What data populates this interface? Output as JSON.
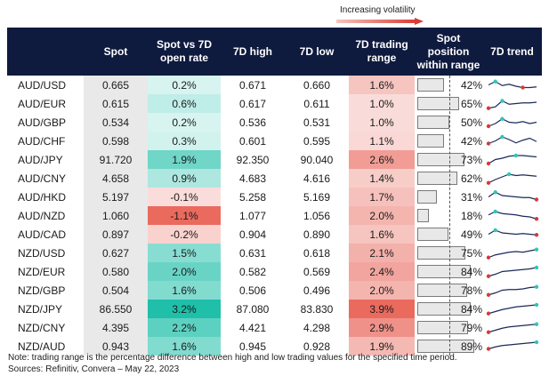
{
  "header": {
    "volatility_label": "Increasing volatility",
    "columns": [
      "",
      "Spot",
      "Spot vs 7D open rate",
      "7D high",
      "7D low",
      "7D trading range",
      "Spot position within range",
      "7D trend"
    ]
  },
  "chart_data": {
    "type": "table",
    "rows": [
      {
        "pair": "AUD/USD",
        "spot": "0.665",
        "vs_open": "0.2%",
        "vs_open_v": 0.2,
        "high": "0.671",
        "low": "0.660",
        "range": "1.6%",
        "range_v": 1.6,
        "pos": "42%",
        "pos_v": 42,
        "trend": [
          0.5,
          0.75,
          0.45,
          0.55,
          0.4,
          0.3,
          0.3,
          0.35
        ]
      },
      {
        "pair": "AUD/EUR",
        "spot": "0.615",
        "vs_open": "0.6%",
        "vs_open_v": 0.6,
        "high": "0.617",
        "low": "0.611",
        "range": "1.0%",
        "range_v": 1.0,
        "pos": "65%",
        "pos_v": 65,
        "trend": [
          0.15,
          0.25,
          0.7,
          0.45,
          0.5,
          0.55,
          0.55,
          0.6
        ]
      },
      {
        "pair": "AUD/GBP",
        "spot": "0.534",
        "vs_open": "0.2%",
        "vs_open_v": 0.2,
        "high": "0.536",
        "low": "0.531",
        "range": "1.0%",
        "range_v": 1.0,
        "pos": "50%",
        "pos_v": 50,
        "trend": [
          0.2,
          0.4,
          0.75,
          0.5,
          0.45,
          0.55,
          0.4,
          0.5
        ]
      },
      {
        "pair": "AUD/CHF",
        "spot": "0.598",
        "vs_open": "0.3%",
        "vs_open_v": 0.3,
        "high": "0.601",
        "low": "0.595",
        "range": "1.1%",
        "range_v": 1.1,
        "pos": "42%",
        "pos_v": 42,
        "trend": [
          0.3,
          0.5,
          0.8,
          0.6,
          0.35,
          0.55,
          0.7,
          0.45
        ]
      },
      {
        "pair": "AUD/JPY",
        "spot": "91.720",
        "vs_open": "1.9%",
        "vs_open_v": 1.9,
        "high": "92.350",
        "low": "90.040",
        "range": "2.6%",
        "range_v": 2.6,
        "pos": "73%",
        "pos_v": 73,
        "trend": [
          0.2,
          0.5,
          0.6,
          0.75,
          0.8,
          0.8,
          0.75,
          0.7
        ]
      },
      {
        "pair": "AUD/CNY",
        "spot": "4.658",
        "vs_open": "0.9%",
        "vs_open_v": 0.9,
        "high": "4.683",
        "low": "4.616",
        "range": "1.4%",
        "range_v": 1.4,
        "pos": "62%",
        "pos_v": 62,
        "trend": [
          0.15,
          0.4,
          0.6,
          0.8,
          0.7,
          0.75,
          0.7,
          0.65
        ]
      },
      {
        "pair": "AUD/HKD",
        "spot": "5.197",
        "vs_open": "-0.1%",
        "vs_open_v": -0.1,
        "high": "5.258",
        "low": "5.169",
        "range": "1.7%",
        "range_v": 1.7,
        "pos": "31%",
        "pos_v": 31,
        "trend": [
          0.5,
          0.85,
          0.6,
          0.55,
          0.5,
          0.45,
          0.45,
          0.3
        ]
      },
      {
        "pair": "AUD/NZD",
        "spot": "1.060",
        "vs_open": "-1.1%",
        "vs_open_v": -1.1,
        "high": "1.077",
        "low": "1.056",
        "range": "2.0%",
        "range_v": 2.0,
        "pos": "18%",
        "pos_v": 18,
        "trend": [
          0.55,
          0.8,
          0.65,
          0.6,
          0.55,
          0.45,
          0.4,
          0.25
        ]
      },
      {
        "pair": "AUD/CAD",
        "spot": "0.897",
        "vs_open": "-0.2%",
        "vs_open_v": -0.2,
        "high": "0.904",
        "low": "0.890",
        "range": "1.6%",
        "range_v": 1.6,
        "pos": "49%",
        "pos_v": 49,
        "trend": [
          0.5,
          0.8,
          0.6,
          0.55,
          0.5,
          0.55,
          0.5,
          0.45
        ]
      },
      {
        "pair": "NZD/USD",
        "spot": "0.627",
        "vs_open": "1.5%",
        "vs_open_v": 1.5,
        "high": "0.631",
        "low": "0.618",
        "range": "2.1%",
        "range_v": 2.1,
        "pos": "75%",
        "pos_v": 75,
        "trend": [
          0.15,
          0.35,
          0.45,
          0.55,
          0.6,
          0.55,
          0.65,
          0.75
        ]
      },
      {
        "pair": "NZD/EUR",
        "spot": "0.580",
        "vs_open": "2.0%",
        "vs_open_v": 2.0,
        "high": "0.582",
        "low": "0.569",
        "range": "2.4%",
        "range_v": 2.4,
        "pos": "84%",
        "pos_v": 84,
        "trend": [
          0.15,
          0.3,
          0.5,
          0.55,
          0.6,
          0.65,
          0.7,
          0.8
        ]
      },
      {
        "pair": "NZD/GBP",
        "spot": "0.504",
        "vs_open": "1.6%",
        "vs_open_v": 1.6,
        "high": "0.506",
        "low": "0.496",
        "range": "2.0%",
        "range_v": 2.0,
        "pos": "78%",
        "pos_v": 78,
        "trend": [
          0.15,
          0.3,
          0.5,
          0.55,
          0.55,
          0.6,
          0.7,
          0.75
        ]
      },
      {
        "pair": "NZD/JPY",
        "spot": "86.550",
        "vs_open": "3.2%",
        "vs_open_v": 3.2,
        "high": "87.080",
        "low": "83.830",
        "range": "3.9%",
        "range_v": 3.9,
        "pos": "84%",
        "pos_v": 84,
        "trend": [
          0.15,
          0.3,
          0.45,
          0.55,
          0.65,
          0.7,
          0.75,
          0.8
        ]
      },
      {
        "pair": "NZD/CNY",
        "spot": "4.395",
        "vs_open": "2.2%",
        "vs_open_v": 2.2,
        "high": "4.421",
        "low": "4.298",
        "range": "2.9%",
        "range_v": 2.9,
        "pos": "79%",
        "pos_v": 79,
        "trend": [
          0.15,
          0.3,
          0.45,
          0.55,
          0.6,
          0.65,
          0.7,
          0.75
        ]
      },
      {
        "pair": "NZD/AUD",
        "spot": "0.943",
        "vs_open": "1.6%",
        "vs_open_v": 1.6,
        "high": "0.945",
        "low": "0.928",
        "range": "1.9%",
        "range_v": 1.9,
        "pos": "89%",
        "pos_v": 89,
        "trend": [
          0.3,
          0.45,
          0.55,
          0.6,
          0.65,
          0.7,
          0.75,
          0.8
        ]
      }
    ]
  },
  "colors": {
    "header_bg": "#0e1a3e",
    "teal_strong": "#1fbfaa",
    "teal_light": "#e6f8f6",
    "red_strong": "#ea6a5e",
    "red_light": "#fbe5e3",
    "trend_line": "#1a2a5a",
    "marker_high": "#2dc7b5",
    "marker_low": "#d9383a"
  },
  "footer": {
    "note": "Note: trading range is the percentage difference between high and low trading values for the specified time period.",
    "source": "Sources: Refinitiv, Convera – May 22, 2023"
  }
}
